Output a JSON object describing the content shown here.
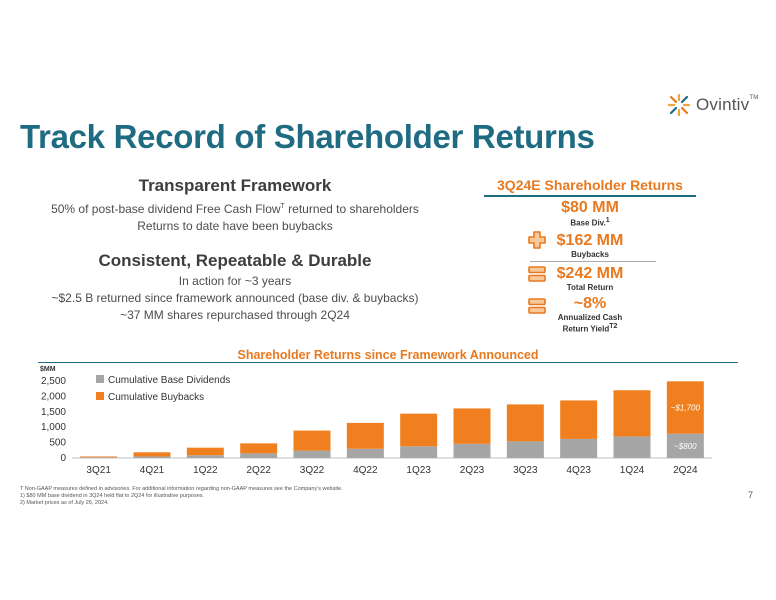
{
  "brand": {
    "name": "Ovintiv",
    "tm": "TM"
  },
  "title": "Track Record of Shareholder Returns",
  "left": {
    "framework_heading": "Transparent Framework",
    "framework_line1": "50% of post-base dividend Free Cash Flow",
    "framework_line1_sup": "T",
    "framework_line1_end": " returned to shareholders",
    "framework_line2": "Returns to date have been buybacks",
    "consistent_heading": "Consistent, Repeatable & Durable",
    "consistent_line1": "In action for ~3 years",
    "consistent_line2": "~$2.5 B returned since framework announced (base div. & buybacks)",
    "consistent_line3": "~37 MM shares repurchased through 2Q24"
  },
  "right": {
    "title": "3Q24E Shareholder Returns",
    "base_value": "$80 MM",
    "base_label": "Base Div.",
    "base_sup": "1",
    "buyback_value": "$162 MM",
    "buyback_label": "Buybacks",
    "total_value": "$242 MM",
    "total_label": "Total Return",
    "yield_value": "~8%",
    "yield_label_1": "Annualized Cash",
    "yield_label_2": "Return Yield",
    "yield_sup": "T2"
  },
  "chart_data": {
    "type": "bar",
    "stacked": true,
    "title": "Shareholder Returns since Framework Announced",
    "ylabel": "$MM",
    "ylim": [
      0,
      2500
    ],
    "yticks": [
      "0",
      "500",
      "1,000",
      "1,500",
      "2,000",
      "2,500"
    ],
    "ytick_values": [
      0,
      500,
      1000,
      1500,
      2000,
      2500
    ],
    "categories": [
      "3Q21",
      "4Q21",
      "1Q22",
      "2Q22",
      "3Q22",
      "4Q22",
      "1Q23",
      "2Q23",
      "3Q23",
      "4Q23",
      "1Q24",
      "2Q24"
    ],
    "series": [
      {
        "name": "Cumulative Base Dividends",
        "color": "#a6a6a6",
        "values": [
          25,
          50,
          90,
          150,
          240,
          300,
          380,
          460,
          540,
          620,
          700,
          790
        ]
      },
      {
        "name": "Cumulative Buybacks",
        "color": "#f0801f",
        "values": [
          25,
          135,
          245,
          325,
          650,
          840,
          1060,
          1150,
          1200,
          1250,
          1500,
          1700
        ]
      }
    ],
    "annotations": [
      {
        "text": "~$1,700",
        "category": "2Q24",
        "series": "Cumulative Buybacks"
      },
      {
        "text": "~$800",
        "category": "2Q24",
        "series": "Cumulative Base Dividends"
      }
    ],
    "legend": "top-left",
    "grid": false
  },
  "footnotes": [
    "T Non-GAAP measures defined in advisories. For additional information regarding non-GAAP measures see the Company's website.",
    "1) $80 MM base dividend in 3Q24 held flat to 2Q24 for illustrative purposes.",
    "2) Market prices as of July 26, 2024."
  ],
  "page_number": "7",
  "colors": {
    "title": "#1e6b82",
    "accent": "#e8791e",
    "dividends": "#a6a6a6",
    "buybacks": "#f0801f"
  }
}
